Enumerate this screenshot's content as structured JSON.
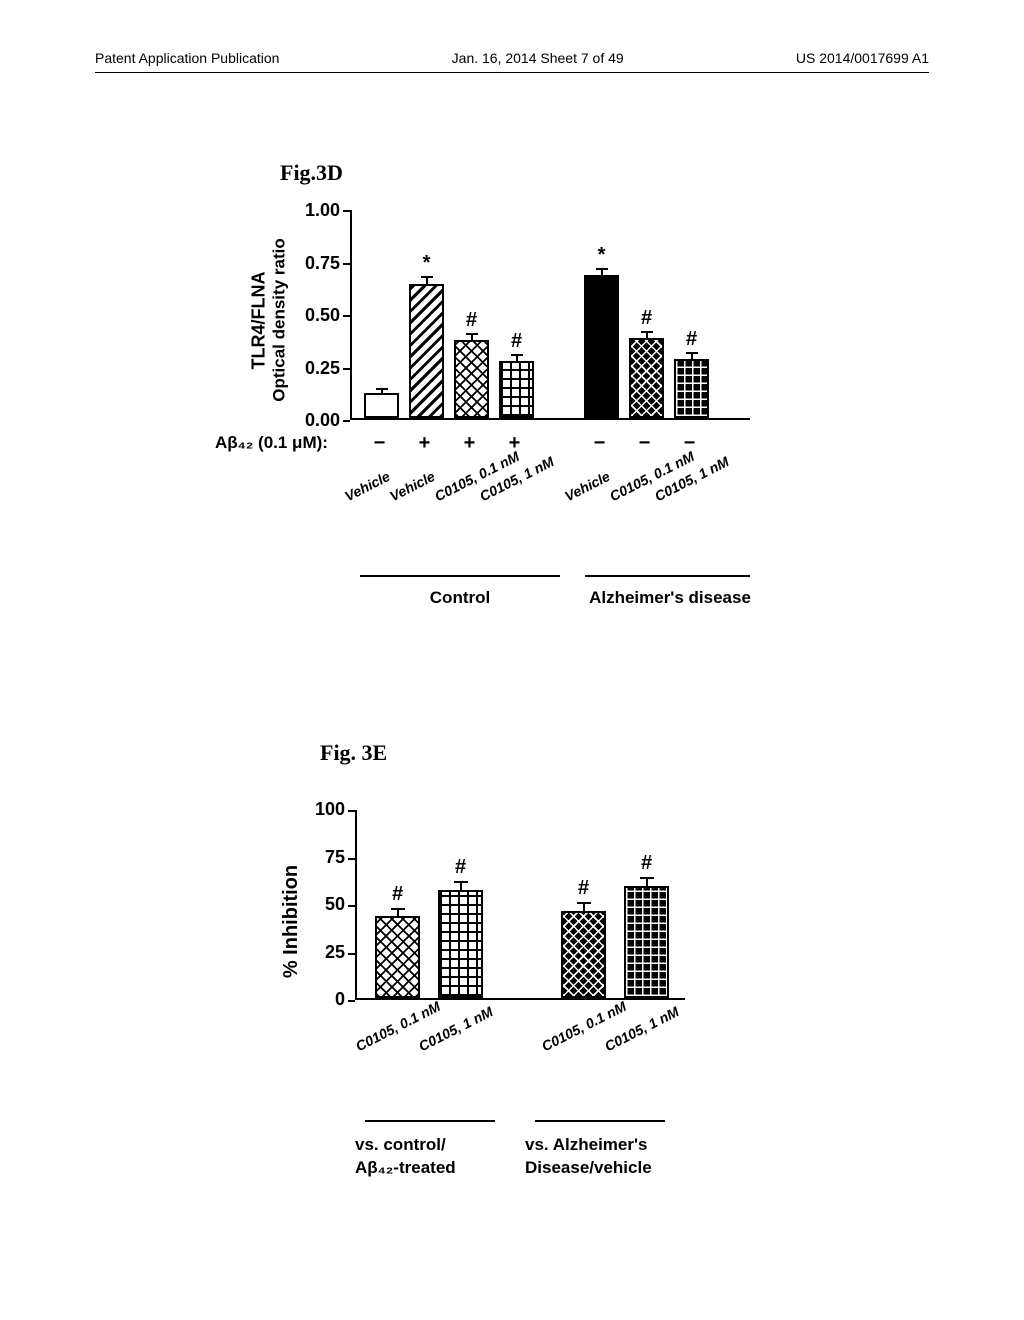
{
  "header": {
    "left": "Patent Application Publication",
    "center": "Jan. 16, 2014  Sheet 7 of 49",
    "right": "US 2014/0017699 A1"
  },
  "fig3d": {
    "title": "Fig.3D",
    "y_label1": "TLR4/FLNA",
    "y_label2": "Optical density ratio",
    "y_ticks": [
      "0.00",
      "0.25",
      "0.50",
      "0.75",
      "1.00"
    ],
    "y_range": [
      0,
      1.0
    ],
    "ab_label": "Aβ₄₂ (0.1 μM):",
    "plusminus": [
      "−",
      "+",
      "+",
      "+",
      "−",
      "−",
      "−"
    ],
    "x_labels": [
      "Vehicle",
      "Vehicle",
      "C0105, 0.1 nM",
      "C0105, 1 nM",
      "Vehicle",
      "C0105, 0.1 nM",
      "C0105, 1 nM"
    ],
    "bars": [
      {
        "value": 0.12,
        "err": 0.02,
        "pattern": "p-white",
        "sig": ""
      },
      {
        "value": 0.64,
        "err": 0.03,
        "pattern": "p-diag",
        "sig": "*"
      },
      {
        "value": 0.37,
        "err": 0.03,
        "pattern": "p-cross-light",
        "sig": "#"
      },
      {
        "value": 0.27,
        "err": 0.03,
        "pattern": "p-grid-light",
        "sig": "#"
      },
      {
        "value": 0.68,
        "err": 0.03,
        "pattern": "p-black",
        "sig": "*"
      },
      {
        "value": 0.38,
        "err": 0.03,
        "pattern": "p-cross-dark",
        "sig": "#"
      },
      {
        "value": 0.28,
        "err": 0.03,
        "pattern": "p-grid-dark",
        "sig": "#"
      }
    ],
    "group1": "Control",
    "group2": "Alzheimer's disease",
    "font_size_axis": 18,
    "font_size_tick": 18,
    "font_size_sig": 20
  },
  "fig3e": {
    "title": "Fig. 3E",
    "y_label": "% Inhibition",
    "y_ticks": [
      "0",
      "25",
      "50",
      "75",
      "100"
    ],
    "y_range": [
      0,
      100
    ],
    "x_labels": [
      "C0105, 0.1 nM",
      "C0105, 1 nM",
      "C0105, 0.1 nM",
      "C0105, 1 nM"
    ],
    "bars": [
      {
        "value": 43,
        "err": 4,
        "pattern": "p-cross-light",
        "sig": "#"
      },
      {
        "value": 57,
        "err": 4,
        "pattern": "p-grid-light",
        "sig": "#"
      },
      {
        "value": 46,
        "err": 4,
        "pattern": "p-cross-dark",
        "sig": "#"
      },
      {
        "value": 59,
        "err": 4,
        "pattern": "p-grid-dark",
        "sig": "#"
      }
    ],
    "group1a": "vs. control/",
    "group1b": "Aβ₄₂-treated",
    "group2a": "vs. Alzheimer's",
    "group2b": "Disease/vehicle",
    "font_size_axis": 20,
    "font_size_tick": 18
  },
  "colors": {
    "text": "#000000",
    "axis": "#000000",
    "background": "#ffffff"
  }
}
